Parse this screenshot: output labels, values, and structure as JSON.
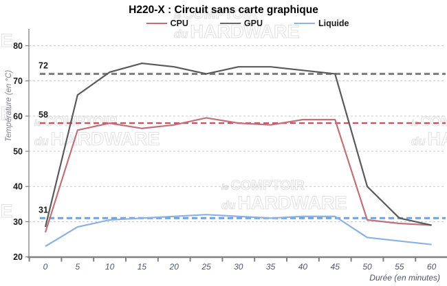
{
  "title": "H220-X : Circuit sans carte graphique",
  "legend": [
    {
      "label": "CPU",
      "color": "#c0707a"
    },
    {
      "label": "GPU",
      "color": "#666666"
    },
    {
      "label": "Liquide",
      "color": "#8db4e2"
    }
  ],
  "watermark": {
    "prefix1": "le",
    "word1": "COMPTOIR",
    "prefix2": "du",
    "word2": "HARDWARE"
  },
  "chart_data": {
    "type": "line",
    "title": "H220-X : Circuit sans carte graphique",
    "xlabel": "Durée (en minutes)",
    "ylabel": "Température (en °C)",
    "x": [
      0,
      5,
      10,
      15,
      20,
      25,
      30,
      35,
      40,
      45,
      50,
      55,
      60
    ],
    "y_ticks": [
      20,
      30,
      40,
      50,
      60,
      70,
      80
    ],
    "ylim": [
      20,
      80
    ],
    "grid": "dashed-horizontal",
    "legend_position": "top-center",
    "series": [
      {
        "name": "CPU",
        "color": "#c0707a",
        "values": [
          27,
          56,
          58,
          56.5,
          57.5,
          59.5,
          58,
          57.5,
          59,
          59,
          30.5,
          29.5,
          29
        ]
      },
      {
        "name": "GPU",
        "color": "#595959",
        "values": [
          28.5,
          66,
          72.5,
          75,
          74,
          72,
          74,
          74,
          73,
          72,
          40,
          31,
          29
        ]
      },
      {
        "name": "Liquide",
        "color": "#8ab1e1",
        "values": [
          23,
          28.5,
          30.5,
          31,
          31.5,
          32,
          31.5,
          31,
          31.5,
          31.5,
          25.5,
          24.5,
          23.5
        ]
      }
    ],
    "ref_lines": [
      {
        "label": "72",
        "value": 72,
        "color": "#7f7f7f",
        "width": 3.2
      },
      {
        "label": "58",
        "value": 58,
        "color": "#c2545e",
        "width": 2.4
      },
      {
        "label": "31",
        "value": 31,
        "color": "#6fa1dc",
        "width": 3.0
      }
    ]
  }
}
